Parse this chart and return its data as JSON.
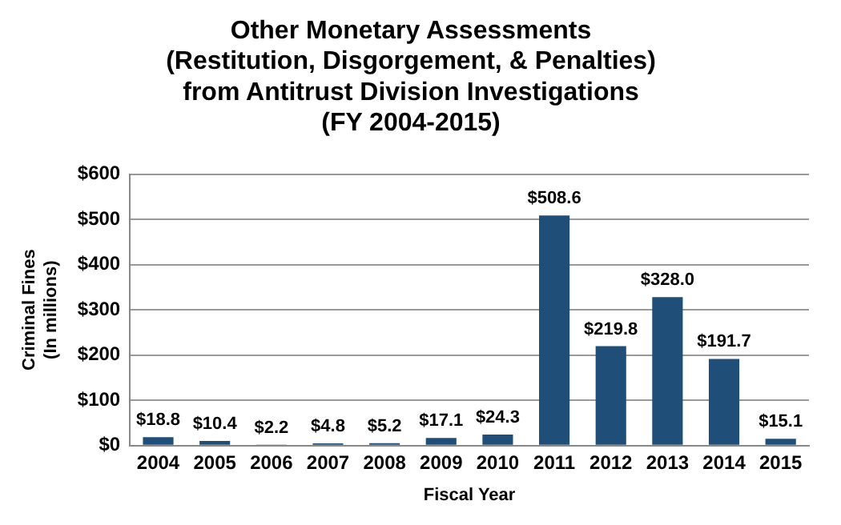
{
  "chart_data": {
    "type": "bar",
    "title": "Other Monetary Assessments\n(Restitution, Disgorgement, & Penalties)\nfrom Antitrust Division Investigations\n(FY 2004-2015)",
    "xlabel": "Fiscal Year",
    "ylabel": "Criminal Fines\n(In millions)",
    "categories": [
      "2004",
      "2005",
      "2006",
      "2007",
      "2008",
      "2009",
      "2010",
      "2011",
      "2012",
      "2013",
      "2014",
      "2015"
    ],
    "values": [
      18.8,
      10.4,
      2.2,
      4.8,
      5.2,
      17.1,
      24.3,
      508.6,
      219.8,
      328.0,
      191.7,
      15.1
    ],
    "value_labels": [
      "$18.8",
      "$10.4",
      "$2.2",
      "$4.8",
      "$5.2",
      "$17.1",
      "$24.3",
      "$508.6",
      "$219.8",
      "$328.0",
      "$191.7",
      "$15.1"
    ],
    "color": "#1f4e79",
    "ylim": [
      0,
      600
    ],
    "yticks": [
      {
        "value": 0,
        "label": "$0"
      },
      {
        "value": 100,
        "label": "$100"
      },
      {
        "value": 200,
        "label": "$200"
      },
      {
        "value": 300,
        "label": "$300"
      },
      {
        "value": 400,
        "label": "$400"
      },
      {
        "value": 500,
        "label": "$500"
      },
      {
        "value": 600,
        "label": "$600"
      }
    ],
    "grid": "y"
  }
}
